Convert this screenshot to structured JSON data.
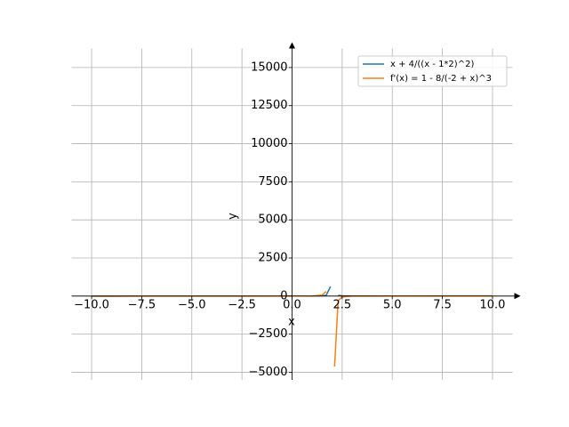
{
  "chart_data": {
    "type": "line",
    "xlabel": "x",
    "ylabel": "y",
    "x": [
      -10,
      -7.5,
      -5,
      -2.5,
      0,
      1,
      1.5,
      1.7,
      1.92,
      2.12,
      2.3,
      2.5,
      3,
      5,
      7.5,
      10
    ],
    "series": [
      {
        "name": "x + 4/((x - 1*2)^2)",
        "color": "#1f77b4",
        "values": [
          -9.97,
          -7.46,
          -4.92,
          -2.3,
          1,
          5,
          17.5,
          46.1,
          626.9,
          null,
          46.7,
          18.5,
          7,
          5.44,
          7.63,
          10.06
        ]
      },
      {
        "name": "f'(x) = 1 - 8/(-2 + x)^3",
        "color": "#ff7f0e",
        "values": [
          1.005,
          1.009,
          1.023,
          1.088,
          2,
          9,
          65,
          297.3,
          null,
          -4629,
          -295.3,
          -63,
          -7,
          0.704,
          0.952,
          0.984
        ]
      }
    ],
    "xlim": [
      -11,
      11
    ],
    "ylim": [
      -5500,
      16250
    ],
    "xticks": [
      {
        "value": -10,
        "label": "−10.0"
      },
      {
        "value": -7.5,
        "label": "−7.5"
      },
      {
        "value": -5,
        "label": "−5.0"
      },
      {
        "value": -2.5,
        "label": "−2.5"
      },
      {
        "value": 0,
        "label": "0.0"
      },
      {
        "value": 2.5,
        "label": "2.5"
      },
      {
        "value": 5,
        "label": "5.0"
      },
      {
        "value": 7.5,
        "label": "7.5"
      },
      {
        "value": 10,
        "label": "10.0"
      }
    ],
    "yticks": [
      {
        "value": -5000,
        "label": "−5000"
      },
      {
        "value": -2500,
        "label": "−2500"
      },
      0,
      2500,
      5000,
      7500,
      10000,
      12500,
      15000
    ],
    "grid": true,
    "legend": "upper right"
  }
}
